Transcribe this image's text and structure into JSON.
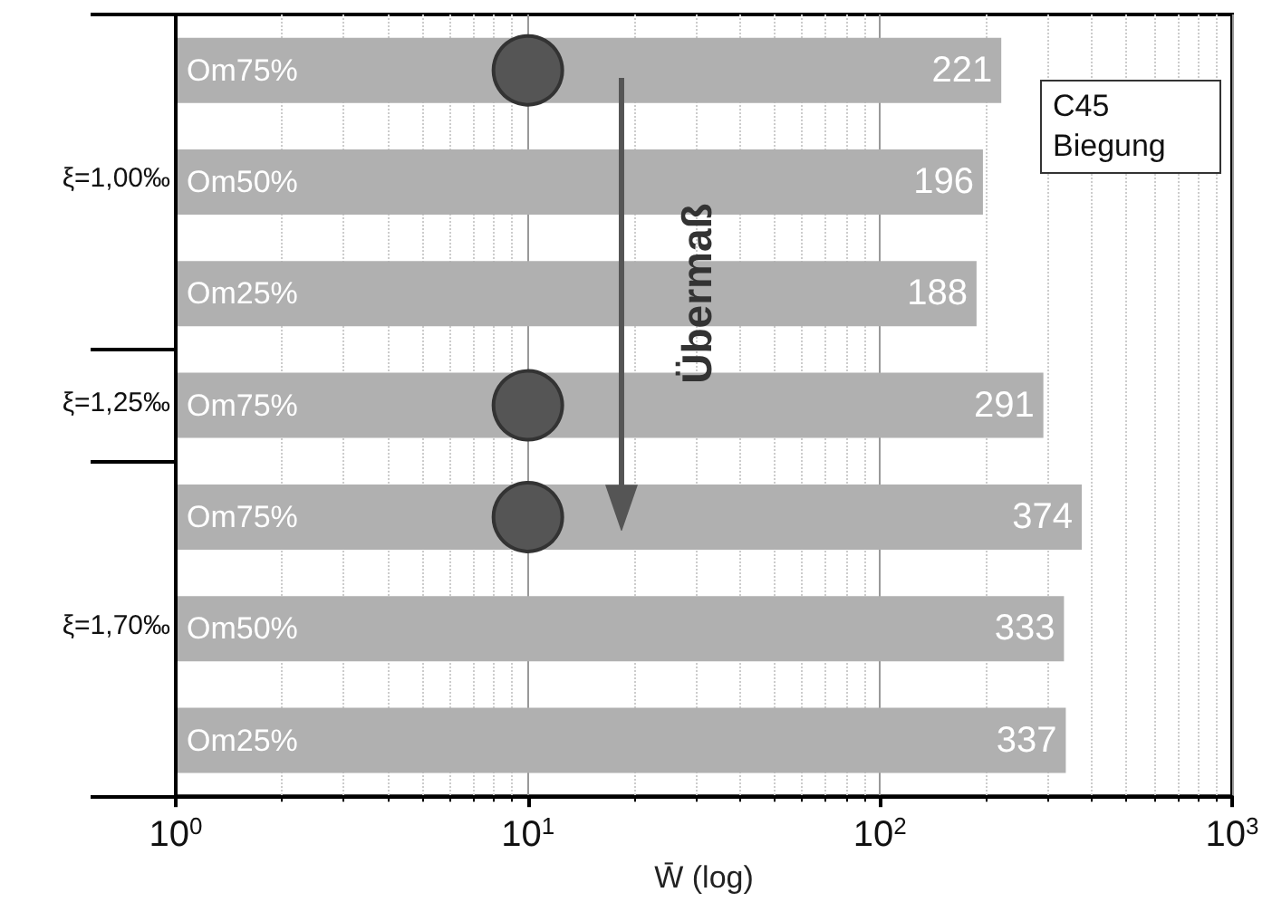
{
  "chart_data": {
    "type": "bar",
    "orientation": "horizontal",
    "xlabel": "W̄ (log)",
    "categories": [
      "Om75%",
      "Om50%",
      "Om25%",
      "Om75%",
      "Om75%",
      "Om50%",
      "Om25%"
    ],
    "series": [
      {
        "color": "#b0b0b0",
        "values": [
          221,
          196,
          188,
          291,
          374,
          333,
          337
        ],
        "data_labels": true
      },
      {
        "type": "scatter",
        "color": "#555555",
        "marker": "circle",
        "values": [
          10,
          null,
          null,
          10,
          10,
          null,
          null
        ]
      }
    ],
    "log": "x",
    "xlim": [
      1,
      1000
    ],
    "xticks": [
      {
        "value": 1,
        "label": "10$^{0}$"
      },
      {
        "value": 10,
        "label": "10$^{1}$"
      },
      {
        "value": 100,
        "label": "10$^{2}$"
      },
      {
        "value": 1000,
        "label": "10$^{3}$"
      }
    ],
    "grid": "x",
    "annotations": [
      "ξ=1,00‰",
      "ξ=1,25‰",
      "ξ=1,70‰",
      "Übermaß",
      "C45 Biegung"
    ]
  }
}
